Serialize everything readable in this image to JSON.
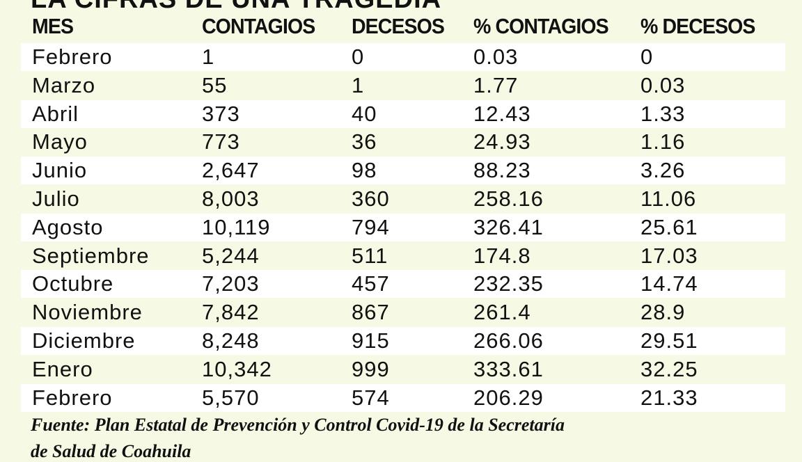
{
  "title": "LA CIFRAS DE UNA TRAGEDIA",
  "headers": [
    "MES",
    "CONTAGIOS",
    "DECESOS",
    "% CONTAGIOS",
    "% DECESOS"
  ],
  "rows": [
    [
      "Febrero",
      "1",
      "0",
      "0.03",
      "0"
    ],
    [
      "Marzo",
      "55",
      "1",
      "1.77",
      "0.03"
    ],
    [
      "Abril",
      "373",
      "40",
      "12.43",
      "1.33"
    ],
    [
      "Mayo",
      "773",
      "36",
      "24.93",
      "1.16"
    ],
    [
      "Junio",
      "2,647",
      "98",
      "88.23",
      "3.26"
    ],
    [
      "Julio",
      "8,003",
      "360",
      "258.16",
      "11.06"
    ],
    [
      "Agosto",
      "10,119",
      "794",
      "326.41",
      "25.61"
    ],
    [
      "Septiembre",
      "5,244",
      "511",
      "174.8",
      "17.03"
    ],
    [
      "Octubre",
      "7,203",
      "457",
      "232.35",
      "14.74"
    ],
    [
      "Noviembre",
      "7,842",
      "867",
      "261.4",
      "28.9"
    ],
    [
      "Diciembre",
      "8,248",
      "915",
      "266.06",
      "29.51"
    ],
    [
      "Enero",
      "10,342",
      "999",
      "333.61",
      "32.25"
    ],
    [
      "Febrero",
      "5,570",
      "574",
      "206.29",
      "21.33"
    ]
  ],
  "source_line1": "Fuente: Plan Estatal de Prevención y Control Covid-19 de la Secretaría",
  "source_line2": "de Salud de Coahuila",
  "colors": {
    "background": "#f6f9e4",
    "row_alt": "#ffffff",
    "text": "#111111"
  }
}
